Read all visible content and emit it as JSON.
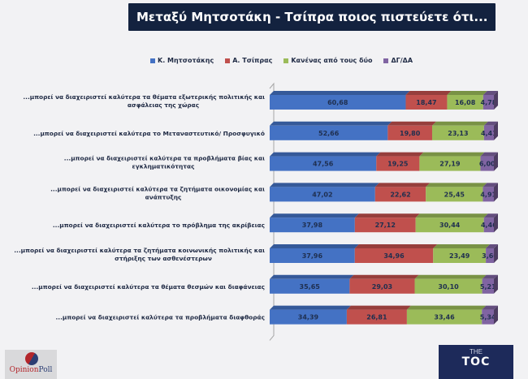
{
  "header": {
    "title": "Μεταξύ Μητσοτάκη - Τσίπρα ποιος πιστεύετε ότι..."
  },
  "legend": [
    {
      "label": "Κ. Μητσοτάκης",
      "color": "#4472c4"
    },
    {
      "label": "Α. Τσίπρας",
      "color": "#c0504d"
    },
    {
      "label": "Κανένας από τους δύο",
      "color": "#9bbb59"
    },
    {
      "label": "ΔΓ/ΔΑ",
      "color": "#8064a2"
    }
  ],
  "chart_data": {
    "type": "bar",
    "orientation": "horizontal",
    "stacked": true,
    "title": "Μεταξύ Μητσοτάκη - Τσίπρα ποιος πιστεύετε ότι...",
    "xlabel": "",
    "ylabel": "",
    "xlim": [
      0,
      100
    ],
    "grid": false,
    "legend_position": "top",
    "categories": [
      [
        "...μπορεί να διαχειριστεί καλύτερα τα θέματα εξωτερικής πολιτικής και",
        "ασφάλειας της χώρας"
      ],
      [
        "...μπορεί να διαχειριστεί καλύτερα το Μεταναστευτικό/ Προσφυγικό"
      ],
      [
        "...μπορεί να διαχειριστεί καλύτερα τα προβλήματα βίας και",
        "εγκληματικότητας"
      ],
      [
        "...μπορεί να διαχειριστεί καλύτερα τα ζητήματα οικονομίας και",
        "ανάπτυξης"
      ],
      [
        "...μπορεί να διαχειριστεί καλύτερα το πρόβλημα της ακρίβειας"
      ],
      [
        "...μπορεί να διαχειριστεί καλύτερα τα ζητήματα κοινωνικής πολιτικής και",
        "στήριξης των ασθενέστερων"
      ],
      [
        "...μπορεί να διαχειριστεί καλύτερα τα θέματα θεσμών και διαφάνειας"
      ],
      [
        "...μπορεί να διαχειριστεί καλύτερα τα προβλήματα διαφθοράς"
      ]
    ],
    "series": [
      {
        "name": "Κ. Μητσοτάκης",
        "color": "#4472c4",
        "values": [
          60.68,
          52.66,
          47.56,
          47.02,
          37.98,
          37.96,
          35.65,
          34.39
        ],
        "labels": [
          "60,68",
          "52,66",
          "47,56",
          "47,02",
          "37,98",
          "37,96",
          "35,65",
          "34,39"
        ]
      },
      {
        "name": "Α. Τσίπρας",
        "color": "#c0504d",
        "values": [
          18.47,
          19.8,
          19.25,
          22.62,
          27.12,
          34.96,
          29.03,
          26.81
        ],
        "labels": [
          "18,47",
          "19,80",
          "19,25",
          "22,62",
          "27,12",
          "34,96",
          "29,03",
          "26,81"
        ]
      },
      {
        "name": "Κανένας από τους δύο",
        "color": "#9bbb59",
        "values": [
          16.08,
          23.13,
          27.19,
          25.45,
          30.44,
          23.49,
          30.1,
          33.46
        ],
        "labels": [
          "16,08",
          "23,13",
          "27,19",
          "25,45",
          "30,44",
          "23,49",
          "30,10",
          "33,46"
        ]
      },
      {
        "name": "ΔΓ/ΔΑ",
        "color": "#8064a2",
        "values": [
          4.78,
          4.41,
          6.0,
          4.91,
          4.46,
          3.6,
          5.21,
          5.34
        ],
        "labels": [
          "4,78",
          "4,41",
          "6,00",
          "4,91",
          "4,46",
          "3,60",
          "5,21",
          "5,34"
        ]
      }
    ]
  },
  "footer": {
    "logo_left": {
      "part1": "Opinion",
      "part2": "Poll"
    },
    "logo_right": {
      "top": "THE",
      "main": "TOC"
    }
  }
}
